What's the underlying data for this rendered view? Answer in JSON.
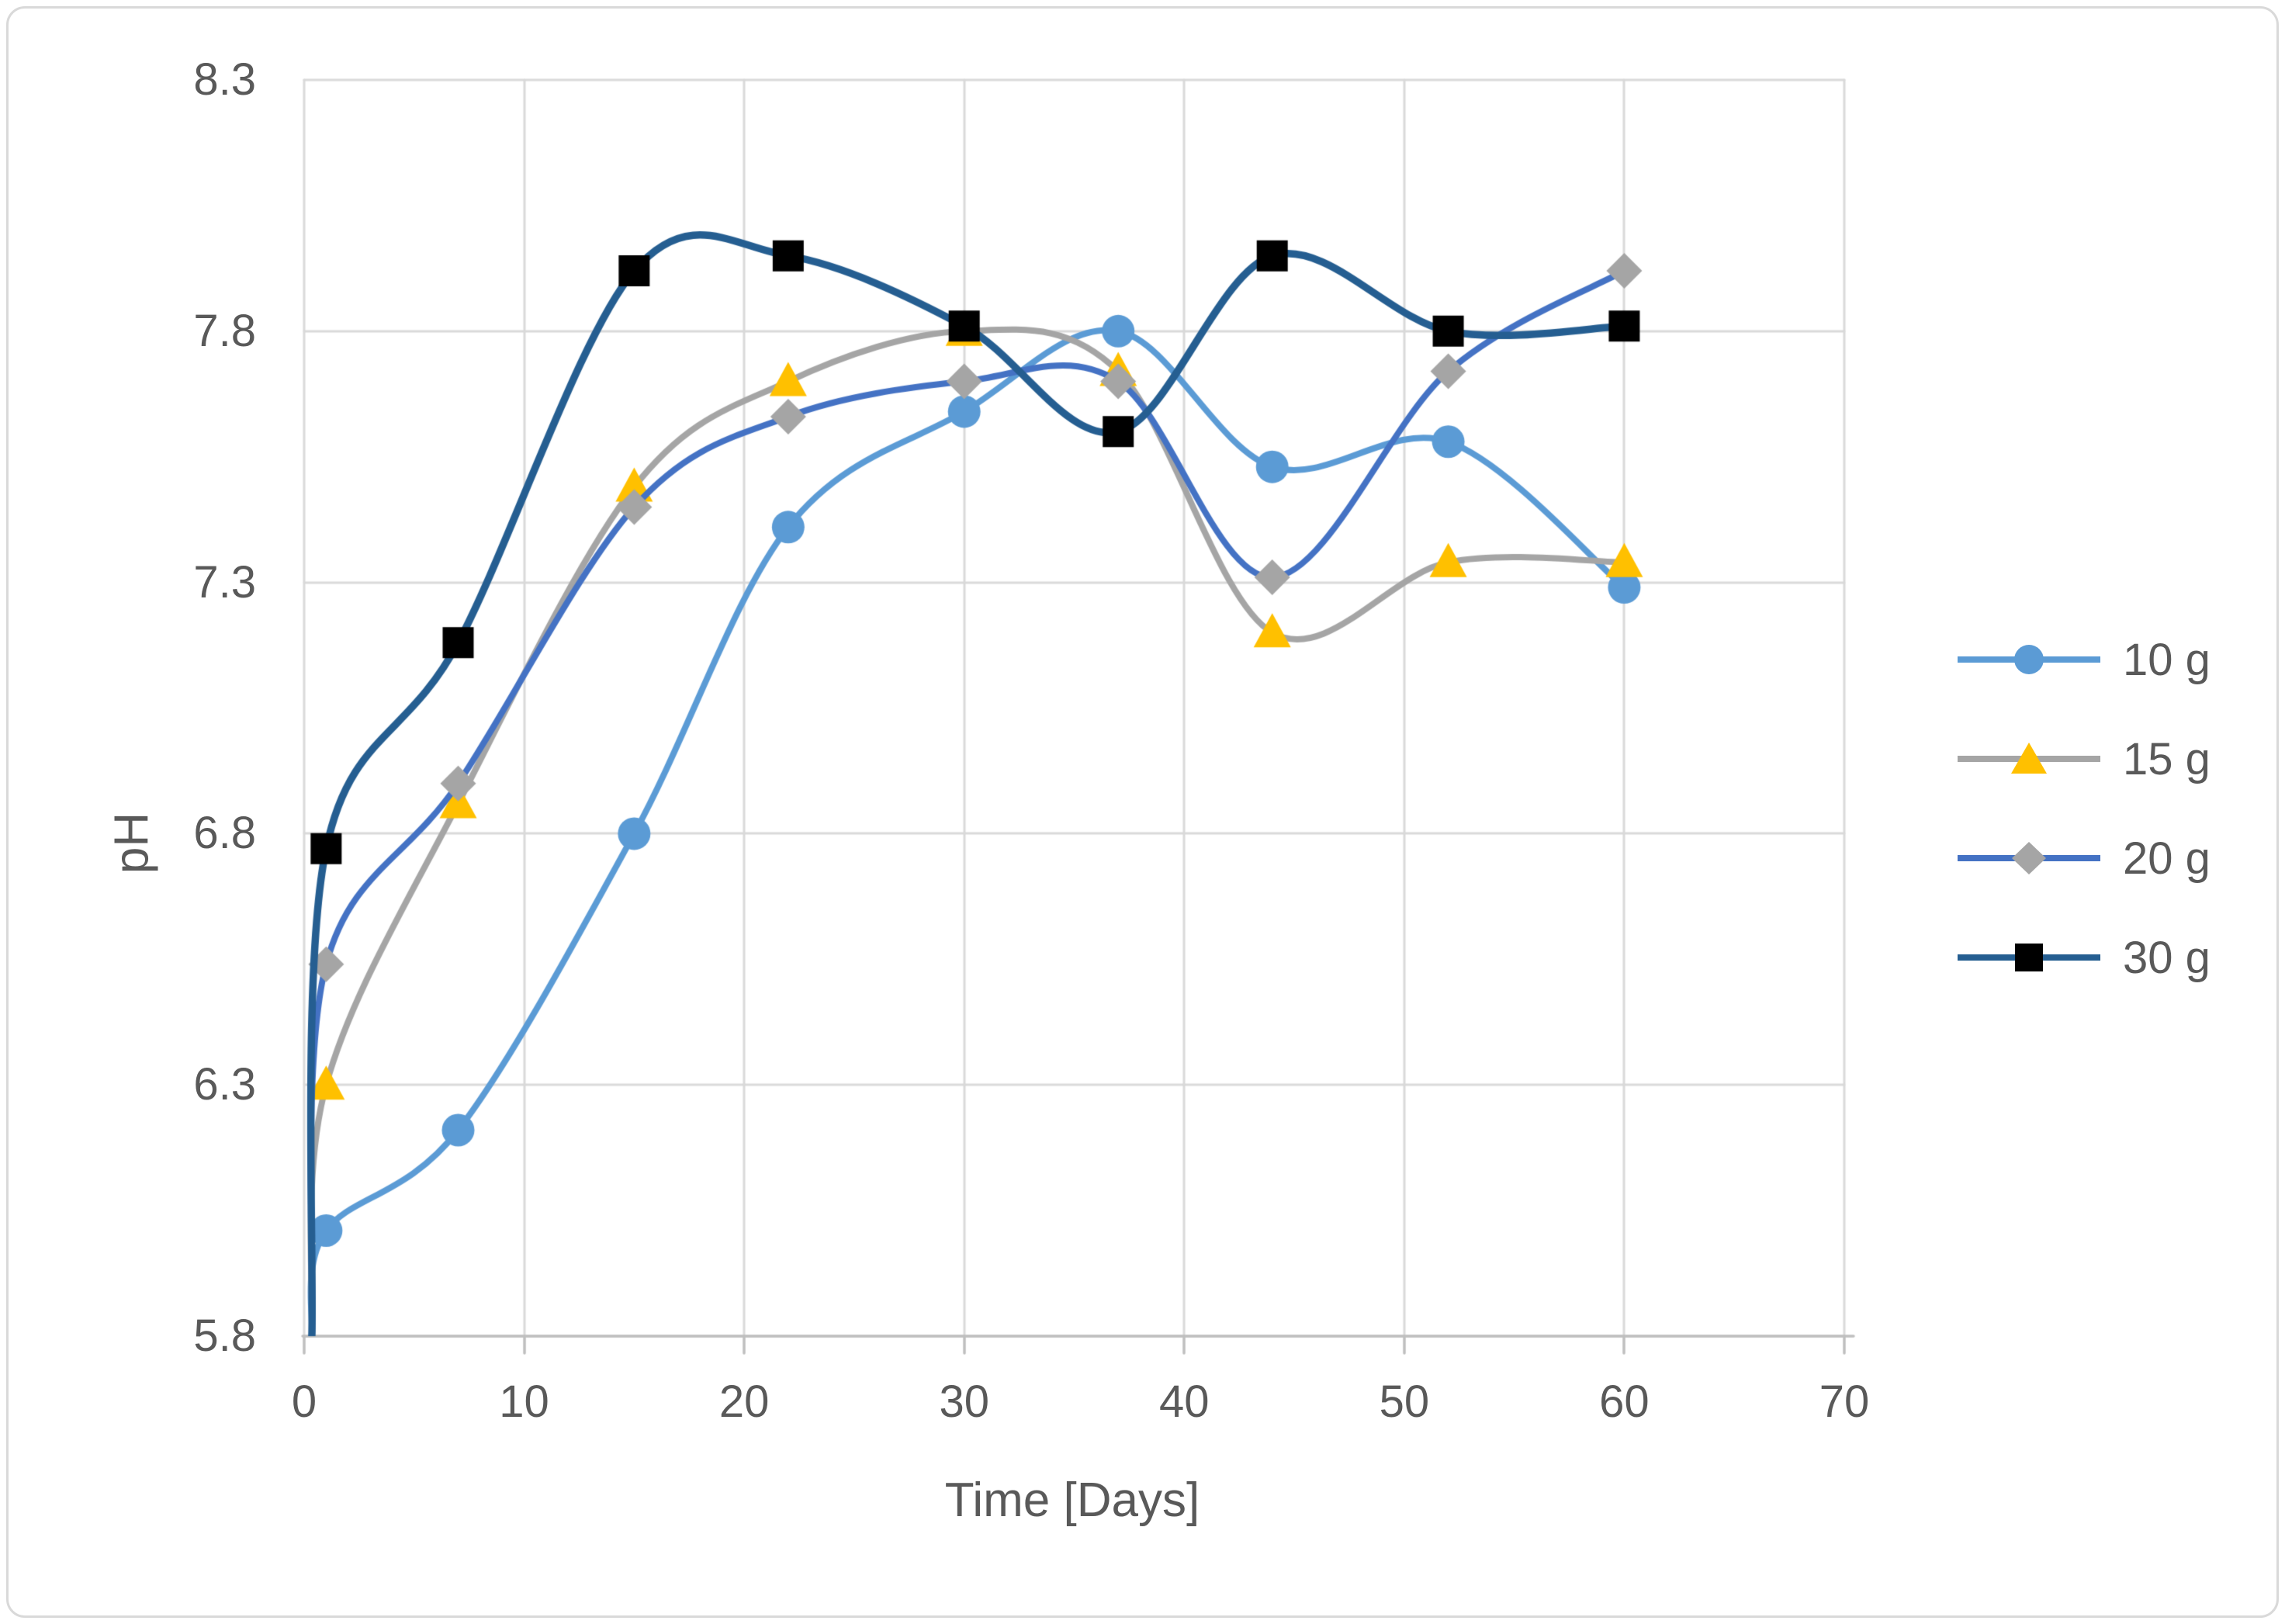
{
  "chart_data": {
    "type": "line",
    "title": "",
    "xlabel": "Time [Days]",
    "ylabel": "pH",
    "x": [
      1,
      7,
      15,
      22,
      30,
      37,
      44,
      52,
      60
    ],
    "series": [
      {
        "name": "10 g",
        "marker": "circle",
        "line_color": "#5B9BD5",
        "marker_color": "#5B9BD5",
        "values": [
          6.01,
          6.21,
          6.8,
          7.41,
          7.64,
          7.8,
          7.53,
          7.58,
          7.29
        ]
      },
      {
        "name": "15 g",
        "marker": "triangle",
        "line_color": "#A5A5A5",
        "marker_color": "#FFC000",
        "values": [
          6.3,
          6.86,
          7.49,
          7.7,
          7.8,
          7.72,
          7.2,
          7.34,
          7.34
        ]
      },
      {
        "name": "20 g",
        "marker": "diamond",
        "line_color": "#4472C4",
        "marker_color": "#A5A5A5",
        "values": [
          6.54,
          6.9,
          7.45,
          7.63,
          7.7,
          7.7,
          7.31,
          7.72,
          7.92
        ]
      },
      {
        "name": "30 g",
        "marker": "square",
        "line_color": "#255E91",
        "marker_color": "#000000",
        "values": [
          6.77,
          7.18,
          7.92,
          7.95,
          7.81,
          7.6,
          7.95,
          7.8,
          7.81
        ]
      }
    ],
    "xlim": [
      0,
      70
    ],
    "ylim": [
      5.8,
      8.3
    ],
    "x_ticks": [
      0,
      10,
      20,
      30,
      40,
      50,
      60,
      70
    ],
    "y_ticks": [
      8.3,
      7.8,
      7.3,
      6.8,
      6.3,
      5.8
    ],
    "grid": true,
    "smooth": true,
    "legend_position": "right",
    "line_origin": {
      "x": 0.35,
      "pH": 5.8
    },
    "colors": {
      "gridline": "#D9D9D9",
      "axis_line": "#BFBFBF",
      "text": "#595959",
      "border": "#D9D9D9",
      "background": "#FFFFFF"
    }
  }
}
